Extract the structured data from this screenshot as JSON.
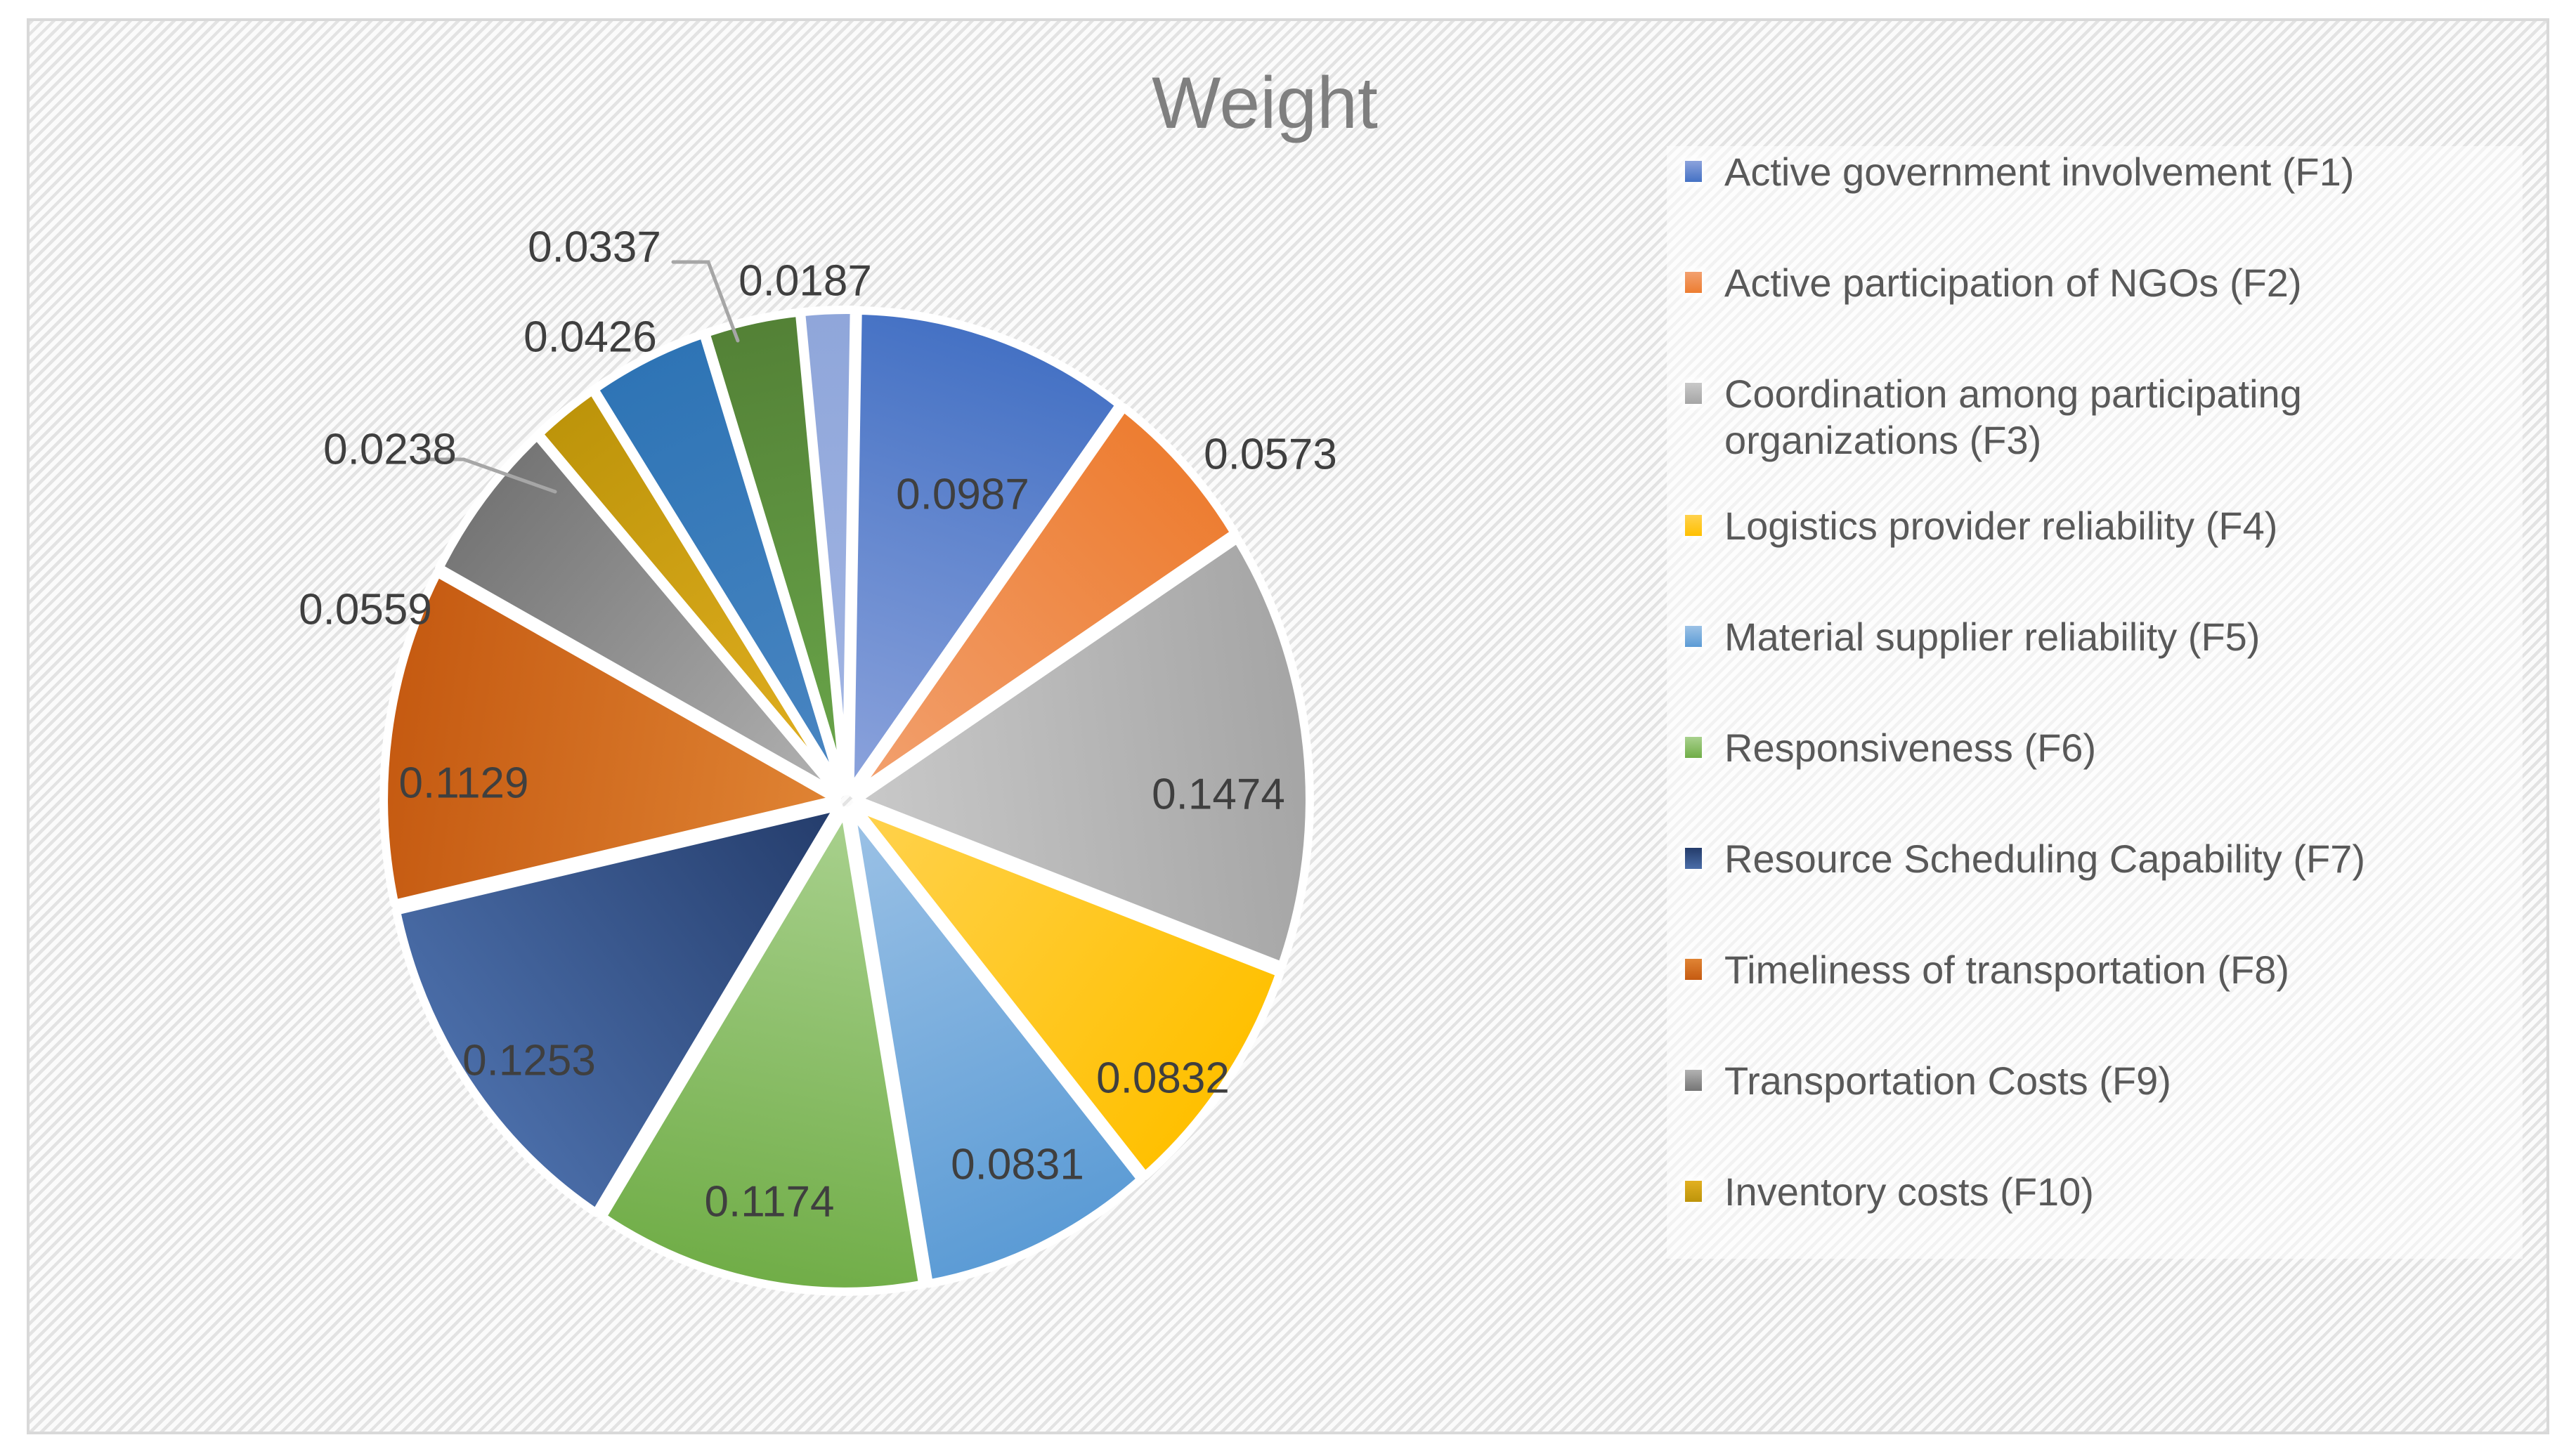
{
  "title": "Weight",
  "title_color": "#7f7f7f",
  "chart_data": {
    "type": "pie",
    "title": "Weight",
    "legend_position": "right",
    "values_sum": 1.0,
    "slices": [
      {
        "legend": "Active government involvement (F1)",
        "value": 0.0987,
        "label_text": "0.0987",
        "color": "#4471C4",
        "inner_color": "#8CA3DC",
        "in_legend": true,
        "label_placement": "inside"
      },
      {
        "legend": "Active participation of NGOs (F2)",
        "value": 0.0573,
        "label_text": "0.0573",
        "color": "#ED7D31",
        "inner_color": "#F2A170",
        "in_legend": true,
        "label_placement": "outside"
      },
      {
        "legend": "Coordination among participating organizations (F3)",
        "value": 0.1474,
        "label_text": "0.1474",
        "color": "#A5A5A5",
        "inner_color": "#C9C9C9",
        "in_legend": true,
        "label_placement": "inside"
      },
      {
        "legend": "Logistics provider reliability (F4)",
        "value": 0.0832,
        "label_text": "0.0832",
        "color": "#FFC000",
        "inner_color": "#FFD24E",
        "in_legend": true,
        "label_placement": "inside"
      },
      {
        "legend": "Material supplier reliability (F5)",
        "value": 0.0831,
        "label_text": "0.0831",
        "color": "#5B9BD5",
        "inner_color": "#9CC2E6",
        "in_legend": true,
        "label_placement": "inside"
      },
      {
        "legend": "Responsiveness (F6)",
        "value": 0.1174,
        "label_text": "0.1174",
        "color": "#70AD47",
        "inner_color": "#A9D18E",
        "in_legend": true,
        "label_placement": "inside"
      },
      {
        "legend": "Resource Scheduling Capability (F7)",
        "value": 0.1253,
        "label_text": "0.1253",
        "color": "#4A6DA8",
        "inner_color": "#243C6B",
        "in_legend": true,
        "label_placement": "inside"
      },
      {
        "legend": "Timeliness of transportation (F8)",
        "value": 0.1129,
        "label_text": "0.1129",
        "color": "#C55A11",
        "inner_color": "#E08434",
        "in_legend": true,
        "label_placement": "inside"
      },
      {
        "legend": "Transportation Costs (F9)",
        "value": 0.0559,
        "label_text": "0.0559",
        "color": "#757575",
        "inner_color": "#B2B2B2",
        "in_legend": true,
        "label_placement": "outside"
      },
      {
        "legend": "Inventory costs (F10)",
        "value": 0.0238,
        "label_text": "0.0238",
        "color": "#BD940A",
        "inner_color": "#E2B021",
        "in_legend": true,
        "label_placement": "outside"
      },
      {
        "legend": "",
        "value": 0.0426,
        "label_text": "0.0426",
        "color": "#2E74B5",
        "inner_color": "#4A86C2",
        "in_legend": false,
        "label_placement": "outside"
      },
      {
        "legend": "",
        "value": 0.0337,
        "label_text": "0.0337",
        "color": "#538136",
        "inner_color": "#6AA64A",
        "in_legend": false,
        "label_placement": "outside"
      },
      {
        "legend": "",
        "value": 0.0187,
        "label_text": "0.0187",
        "color": "#8FA6DA",
        "inner_color": "#A3B6E4",
        "in_legend": false,
        "label_placement": "outside"
      }
    ],
    "data_label_color": "#3f3f3f",
    "leader_line_color": "#A6A6A6",
    "legend_text_color": "#595959"
  }
}
